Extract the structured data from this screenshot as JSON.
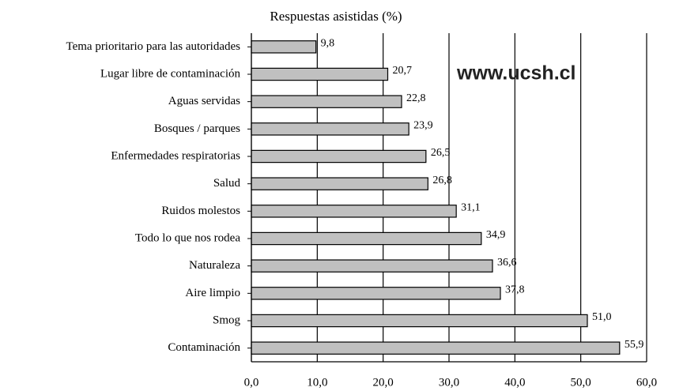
{
  "chart_data": {
    "type": "barh",
    "title": "Respuestas asistidas (%)",
    "annotation": "www.ucsh.cl",
    "categories": [
      "Tema prioritario para las autoridades",
      "Lugar libre de contaminación",
      "Aguas servidas",
      "Bosques / parques",
      "Enfermedades respiratorias",
      "Salud",
      "Ruidos molestos",
      "Todo lo que nos rodea",
      "Naturaleza",
      "Aire limpio",
      "Smog",
      "Contaminación"
    ],
    "values": [
      9.8,
      20.7,
      22.8,
      23.9,
      26.5,
      26.8,
      31.1,
      34.9,
      36.6,
      37.8,
      51.0,
      55.9
    ],
    "value_labels": [
      "9,8",
      "20,7",
      "22,8",
      "23,9",
      "26,5",
      "26,8",
      "31,1",
      "34,9",
      "36,6",
      "37,8",
      "51,0",
      "55,9"
    ],
    "color": "#c0c0c0",
    "xlim": [
      0,
      60
    ],
    "xticks": [
      {
        "value": 0,
        "label": "0,0"
      },
      {
        "value": 10,
        "label": "10,0"
      },
      {
        "value": 20,
        "label": "20,0"
      },
      {
        "value": 30,
        "label": "30,0"
      },
      {
        "value": 40,
        "label": "40,0"
      },
      {
        "value": 50,
        "label": "50,0"
      },
      {
        "value": 60,
        "label": "60,0"
      }
    ],
    "grid": true
  }
}
